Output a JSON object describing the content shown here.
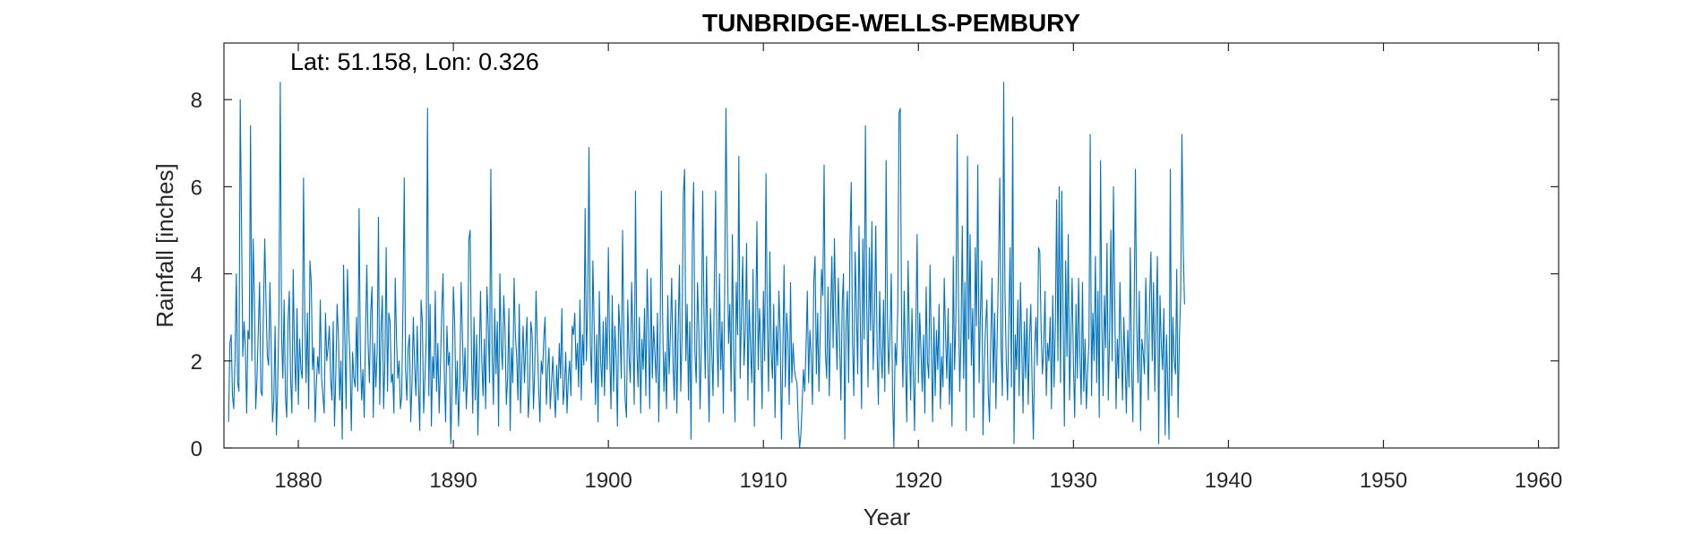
{
  "chart_data": {
    "type": "line",
    "title": "TUNBRIDGE-WELLS-PEMBURY",
    "annotation": "Lat: 51.158, Lon: 0.326",
    "xlabel": "Year",
    "ylabel": "Rainfall [inches]",
    "xlim": [
      1875.2,
      1961.3
    ],
    "ylim": [
      0,
      9.3
    ],
    "xticks": [
      1880,
      1890,
      1900,
      1910,
      1920,
      1930,
      1940,
      1950,
      1960
    ],
    "xtick_labels": [
      "1880",
      "1890",
      "1900",
      "1910",
      "1920",
      "1930",
      "1940",
      "1950",
      "1960"
    ],
    "yticks": [
      0,
      2,
      4,
      6,
      8
    ],
    "ytick_labels": [
      "0",
      "2",
      "4",
      "6",
      "8"
    ],
    "grid": false,
    "series": [
      {
        "color": "#0072BD",
        "x_start": 1875.5,
        "x_step": 0.083333,
        "values": [
          0.6,
          2.4,
          2.6,
          1.2,
          0.9,
          2.1,
          4.0,
          1.5,
          1.3,
          8.0,
          5.2,
          2.1,
          2.9,
          2.3,
          0.8,
          2.7,
          2.5,
          7.4,
          2.0,
          4.8,
          3.4,
          0.9,
          1.6,
          2.7,
          3.8,
          1.3,
          1.2,
          3.2,
          4.8,
          3.3,
          2.1,
          1.9,
          3.8,
          2.3,
          0.6,
          1.1,
          2.8,
          0.3,
          1.4,
          3.1,
          8.4,
          2.6,
          1.6,
          3.4,
          1.2,
          0.7,
          2.9,
          3.6,
          1.6,
          0.8,
          4.1,
          2.2,
          1.3,
          3.2,
          1.0,
          2.5,
          1.8,
          1.6,
          6.2,
          2.9,
          1.5,
          3.1,
          0.9,
          4.3,
          3.8,
          1.8,
          2.3,
          0.6,
          1.5,
          2.1,
          1.7,
          3.4,
          1.6,
          1.2,
          0.8,
          3.1,
          2.0,
          2.3,
          2.8,
          1.6,
          1.1,
          2.9,
          0.5,
          1.7,
          3.3,
          2.6,
          1.1,
          2.0,
          0.2,
          4.2,
          2.5,
          0.9,
          4.1,
          2.8,
          2.0,
          0.4,
          2.2,
          1.6,
          1.4,
          3.0,
          1.3,
          5.5,
          2.2,
          1.1,
          1.8,
          0.7,
          2.6,
          4.2,
          2.4,
          1.5,
          3.1,
          3.7,
          0.7,
          2.4,
          1.4,
          2.2,
          5.3,
          1.0,
          2.7,
          3.5,
          0.9,
          2.0,
          4.6,
          1.3,
          3.1,
          2.9,
          1.5,
          1.7,
          0.8,
          3.9,
          2.5,
          1.6,
          2.0,
          0.9,
          1.2,
          3.3,
          6.2,
          1.8,
          1.1,
          2.3,
          2.6,
          0.6,
          1.5,
          3.0,
          1.9,
          1.2,
          2.8,
          1.4,
          0.4,
          3.4,
          2.9,
          0.8,
          1.6,
          2.5,
          7.8,
          1.2,
          3.3,
          0.5,
          2.1,
          1.6,
          3.6,
          1.3,
          2.4,
          0.8,
          1.9,
          3.1,
          4.0,
          1.7,
          0.6,
          2.8,
          1.9,
          2.2,
          0.1,
          1.4,
          3.7,
          2.9,
          1.0,
          2.0,
          0.5,
          1.5,
          3.8,
          2.6,
          1.3,
          2.3,
          0.9,
          1.7,
          4.8,
          5.0,
          2.2,
          0.8,
          3.0,
          1.1,
          2.6,
          0.3,
          1.9,
          3.6,
          2.0,
          1.2,
          2.5,
          0.9,
          3.7,
          2.8,
          1.5,
          6.4,
          2.2,
          1.0,
          3.2,
          1.7,
          2.9,
          0.5,
          4.0,
          2.4,
          1.8,
          3.5,
          2.7,
          1.0,
          1.6,
          3.2,
          0.4,
          2.3,
          1.5,
          3.9,
          2.6,
          2.1,
          1.1,
          3.3,
          0.8,
          1.9,
          2.8,
          1.5,
          2.3,
          3.0,
          0.7,
          1.3,
          2.9,
          2.6,
          0.9,
          1.8,
          3.6,
          2.4,
          1.4,
          0.6,
          2.0,
          1.7,
          2.5,
          3.0,
          1.0,
          1.8,
          2.3,
          0.9,
          1.5,
          2.1,
          1.3,
          0.7,
          1.9,
          1.1,
          2.4,
          1.6,
          3.2,
          1.0,
          1.4,
          2.2,
          0.8,
          1.6,
          2.0,
          1.2,
          2.8,
          2.6,
          3.1,
          1.8,
          2.4,
          1.4,
          3.4,
          1.1,
          2.6,
          1.9,
          5.5,
          2.0,
          3.3,
          6.9,
          2.4,
          1.5,
          4.3,
          2.8,
          1.0,
          2.6,
          0.6,
          3.6,
          2.0,
          1.4,
          2.9,
          1.2,
          3.0,
          1.8,
          4.6,
          2.2,
          0.9,
          3.5,
          1.3,
          2.8,
          2.1,
          0.5,
          3.3,
          2.7,
          1.6,
          5.0,
          2.4,
          1.1,
          0.7,
          3.4,
          2.1,
          1.5,
          3.8,
          2.6,
          1.0,
          5.9,
          2.3,
          1.4,
          3.0,
          0.8,
          2.5,
          1.8,
          3.2,
          1.2,
          4.1,
          2.7,
          0.9,
          3.9,
          1.6,
          2.8,
          2.2,
          1.5,
          3.1,
          0.6,
          2.4,
          5.9,
          3.0,
          1.3,
          2.2,
          0.9,
          3.5,
          1.7,
          2.6,
          3.9,
          2.0,
          1.1,
          3.4,
          0.8,
          2.7,
          4.2,
          1.3,
          2.5,
          5.8,
          6.4,
          2.0,
          3.3,
          1.1,
          2.9,
          0.2,
          4.7,
          6.1,
          2.2,
          1.5,
          3.8,
          2.7,
          0.9,
          2.4,
          5.9,
          3.1,
          1.6,
          4.4,
          2.0,
          0.6,
          3.2,
          2.3,
          1.2,
          3.7,
          5.9,
          2.5,
          1.4,
          4.0,
          1.8,
          2.9,
          0.8,
          3.5,
          7.8,
          4.9,
          2.4,
          3.3,
          1.3,
          4.9,
          2.1,
          0.6,
          3.8,
          2.6,
          6.7,
          1.6,
          3.0,
          4.4,
          1.9,
          2.7,
          4.7,
          1.1,
          3.4,
          2.3,
          1.5,
          4.1,
          0.5,
          2.8,
          5.2,
          1.8,
          3.2,
          2.4,
          0.9,
          3.6,
          2.0,
          6.3,
          2.9,
          1.3,
          4.5,
          2.2,
          1.6,
          3.3,
          0.7,
          2.8,
          1.9,
          3.6,
          2.6,
          0.2,
          2.1,
          4.2,
          1.4,
          3.1,
          2.5,
          1.0,
          3.8,
          1.5,
          2.4,
          1.8,
          1.6,
          1.5,
          0.6,
          0.0,
          0.3,
          1.0,
          1.8,
          1.3,
          2.3,
          3.6,
          1.5,
          2.7,
          2.1,
          1.0,
          3.8,
          4.4,
          1.7,
          3.1,
          1.3,
          2.6,
          4.1,
          3.5,
          6.5,
          2.2,
          1.6,
          3.7,
          1.2,
          3.0,
          4.4,
          2.3,
          4.8,
          3.0,
          1.8,
          3.9,
          2.5,
          1.1,
          3.3,
          4.0,
          0.2,
          2.8,
          3.6,
          1.5,
          4.7,
          6.1,
          2.4,
          1.2,
          4.5,
          3.2,
          1.7,
          5.1,
          2.9,
          0.9,
          4.8,
          2.5,
          7.4,
          3.3,
          1.4,
          4.6,
          2.7,
          5.2,
          1.8,
          3.0,
          5.1,
          2.3,
          1.0,
          3.6,
          2.2,
          1.6,
          3.4,
          1.3,
          6.6,
          3.0,
          1.7,
          2.6,
          4.0,
          1.2,
          0.0,
          2.4,
          1.9,
          3.2,
          7.7,
          7.8,
          2.7,
          1.4,
          3.6,
          2.0,
          0.6,
          4.3,
          2.5,
          1.1,
          3.2,
          1.8,
          0.4,
          2.7,
          4.9,
          1.5,
          3.1,
          2.2,
          1.3,
          2.6,
          0.8,
          3.7,
          2.0,
          1.6,
          4.2,
          2.4,
          0.6,
          3.0,
          1.2,
          2.7,
          1.8,
          3.3,
          0.9,
          2.1,
          1.4,
          3.9,
          2.6,
          1.6,
          3.2,
          1.0,
          2.4,
          0.5,
          4.4,
          1.8,
          2.9,
          7.2,
          3.4,
          1.3,
          2.6,
          5.1,
          1.6,
          3.8,
          0.4,
          6.7,
          2.5,
          4.9,
          1.9,
          3.2,
          0.7,
          4.6,
          2.8,
          6.5,
          1.5,
          3.1,
          4.3,
          0.3,
          1.9,
          2.8,
          3.4,
          1.3,
          0.6,
          2.4,
          3.9,
          1.5,
          3.1,
          0.9,
          2.6,
          4.1,
          6.2,
          2.3,
          1.2,
          8.4,
          3.6,
          2.0,
          1.1,
          2.9,
          4.6,
          1.4,
          7.6,
          0.1,
          2.6,
          1.8,
          3.4,
          1.2,
          3.8,
          2.3,
          0.8,
          2.9,
          1.6,
          3.2,
          1.0,
          2.5,
          3.3,
          1.5,
          0.2,
          2.3,
          3.0,
          1.9,
          4.6,
          4.5,
          2.7,
          1.7,
          2.3,
          3.6,
          1.2,
          2.4,
          2.0,
          3.0,
          0.9,
          3.5,
          1.4,
          2.8,
          5.7,
          2.0,
          6.0,
          1.5,
          5.9,
          3.1,
          0.5,
          4.3,
          2.1,
          4.9,
          1.1,
          2.5,
          3.9,
          1.9,
          0.7,
          3.3,
          1.6,
          3.9,
          2.2,
          1.0,
          3.8,
          1.3,
          2.5,
          0.9,
          1.8,
          2.4,
          7.2,
          1.2,
          3.1,
          2.0,
          4.4,
          1.5,
          3.6,
          0.7,
          6.6,
          2.8,
          1.2,
          3.5,
          2.3,
          4.7,
          1.1,
          2.6,
          5.0,
          2.0,
          6.0,
          3.3,
          0.9,
          2.5,
          1.6,
          3.8,
          2.4,
          1.1,
          3.0,
          2.0,
          0.8,
          2.7,
          1.4,
          4.6,
          1.9,
          0.6,
          3.2,
          6.4,
          2.8,
          1.5,
          3.6,
          0.4,
          2.5,
          2.2,
          1.7,
          3.9,
          2.6,
          1.1,
          3.4,
          4.5,
          2.0,
          3.8,
          1.3,
          2.9,
          4.4,
          0.1,
          3.5,
          2.4,
          1.8,
          3.2,
          0.3,
          2.6,
          1.5,
          0.2,
          6.4,
          1.2,
          3.0,
          2.0,
          1.7,
          4.1,
          0.7,
          2.5,
          3.5,
          7.2,
          4.6,
          3.3
        ]
      }
    ]
  }
}
